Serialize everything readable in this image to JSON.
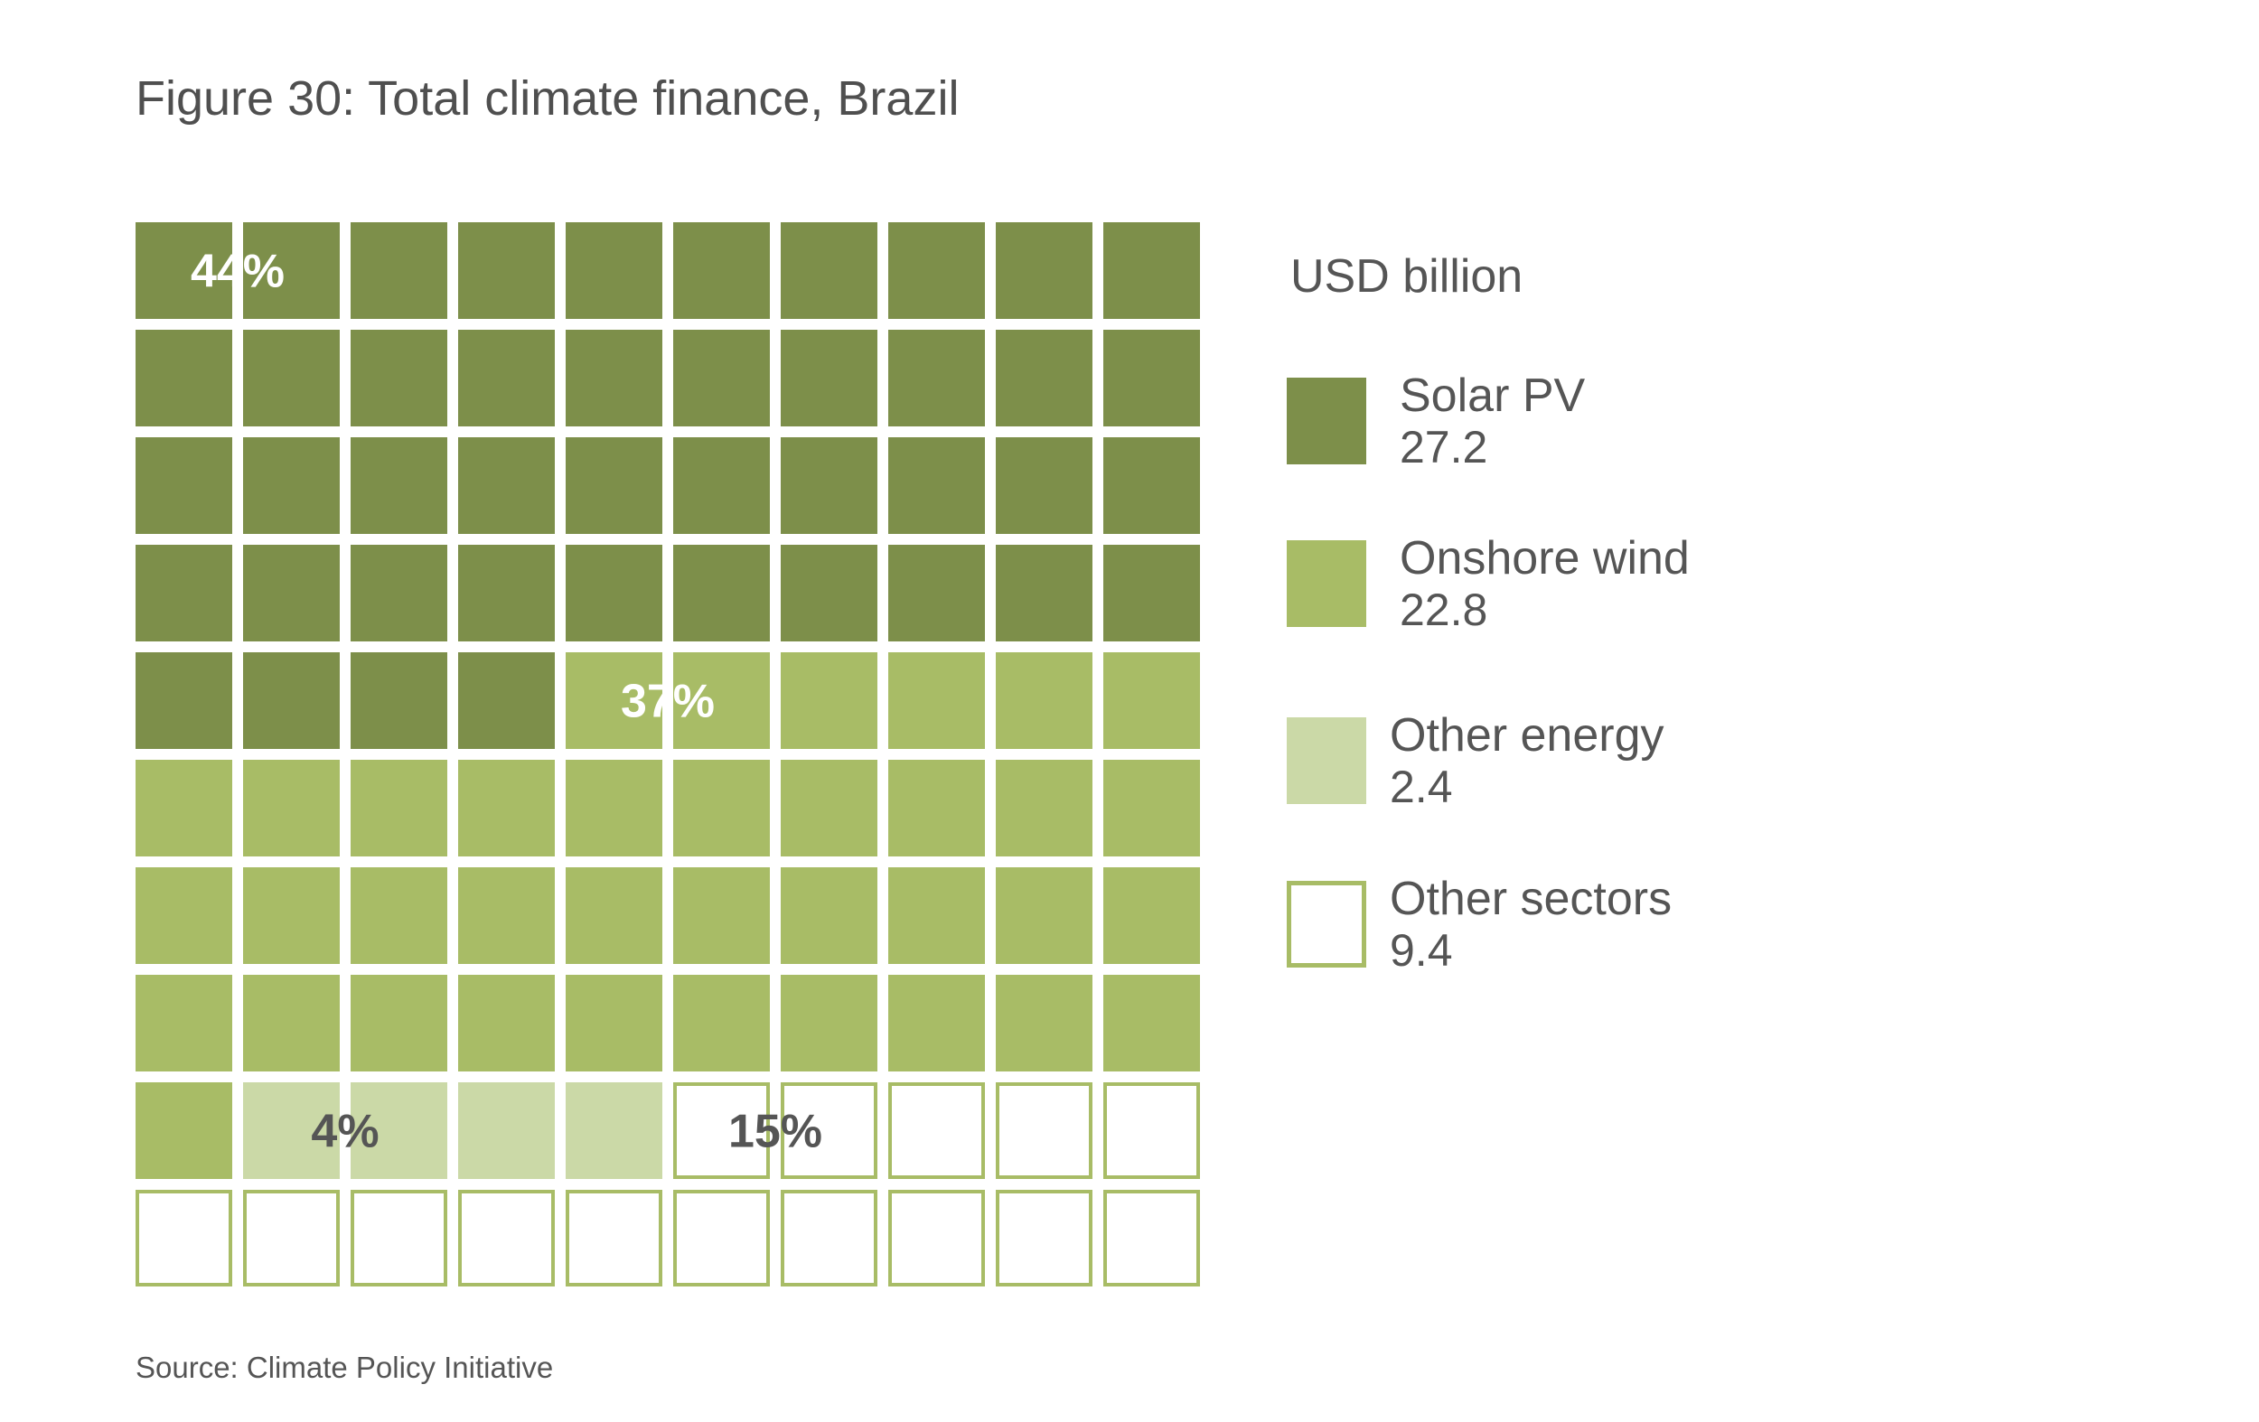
{
  "title": "Figure 30: Total climate finance, Brazil",
  "source": "Source: Climate Policy Initiative",
  "legend": {
    "title": "USD billion",
    "items": [
      {
        "name": "Solar PV",
        "value": "27.2",
        "color": "#7d8f4a",
        "outline": false
      },
      {
        "name": "Onshore wind",
        "value": "22.8",
        "color": "#a8bc66",
        "outline": false
      },
      {
        "name": "Other energy",
        "value": "2.4",
        "color": "#cbd9a7",
        "outline": false
      },
      {
        "name": "Other sectors",
        "value": "9.4",
        "color": "#ffffff",
        "outline": true
      }
    ]
  },
  "chart_data": {
    "type": "waffle",
    "grid": [
      10,
      10
    ],
    "unit": "USD billion",
    "categories": [
      "Solar PV",
      "Onshore wind",
      "Other energy",
      "Other sectors"
    ],
    "values": [
      27.2,
      22.8,
      2.4,
      9.4
    ],
    "squares": [
      44,
      37,
      4,
      15
    ],
    "percent_labels": [
      "44%",
      "37%",
      "4%",
      "15%"
    ],
    "colors": [
      "#7d8f4a",
      "#a8bc66",
      "#cbd9a7",
      "#ffffff"
    ],
    "outline_color": "#a8bc66",
    "label_colors": [
      "#ffffff",
      "#ffffff",
      "#555555",
      "#555555"
    ]
  }
}
